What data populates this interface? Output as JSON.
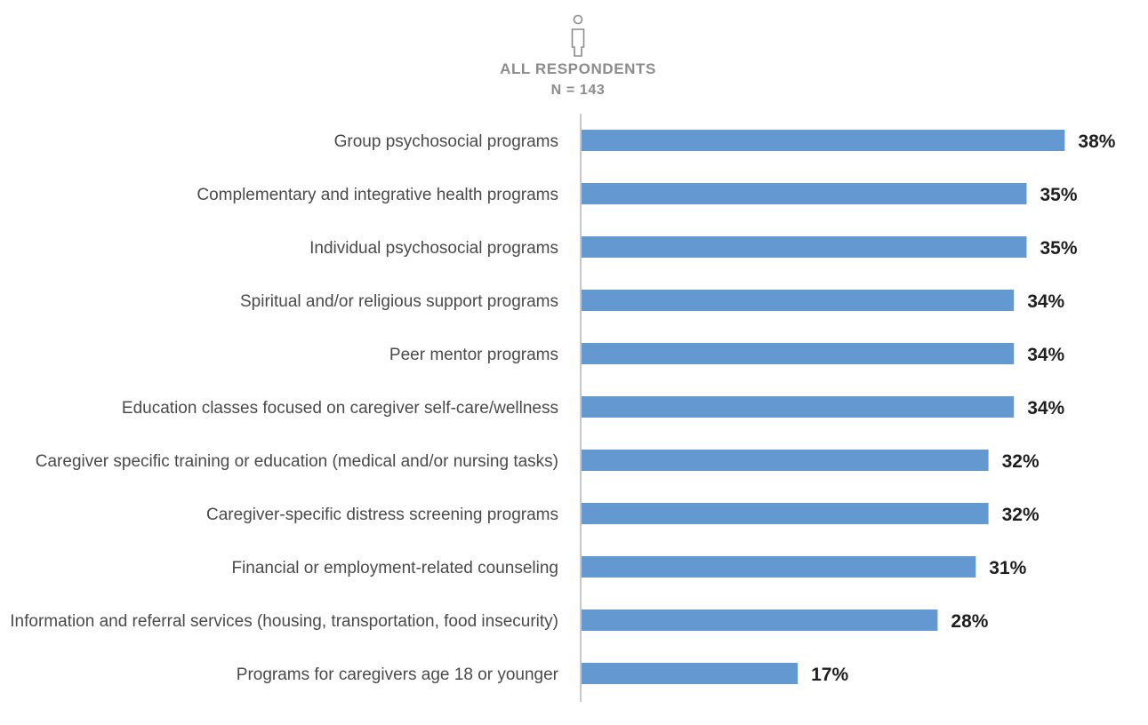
{
  "chart_data": {
    "type": "bar",
    "orientation": "horizontal",
    "header": {
      "icon": "person-icon",
      "title": "ALL RESPONDENTS",
      "subtitle": "N = 143"
    },
    "categories": [
      "Group psychosocial programs",
      "Complementary and integrative health programs",
      "Individual psychosocial programs",
      "Spiritual and/or religious support programs",
      "Peer mentor programs",
      "Education classes focused on caregiver self-care/wellness",
      "Caregiver specific training or education (medical and/or nursing tasks)",
      "Caregiver-specific distress screening programs",
      "Financial or employment-related counseling",
      "Information and referral services (housing, transportation, food insecurity)",
      "Programs for caregivers age 18 or younger"
    ],
    "values": [
      38,
      35,
      35,
      34,
      34,
      34,
      32,
      32,
      31,
      28,
      17
    ],
    "value_labels": [
      "38%",
      "35%",
      "35%",
      "34%",
      "34%",
      "34%",
      "32%",
      "32%",
      "31%",
      "28%",
      "17%"
    ],
    "unit": "%",
    "xlim": [
      0,
      40
    ],
    "colors": {
      "bar": "#6399d0",
      "axis": "#c8c8c8",
      "header": "#8c8c8c"
    }
  }
}
